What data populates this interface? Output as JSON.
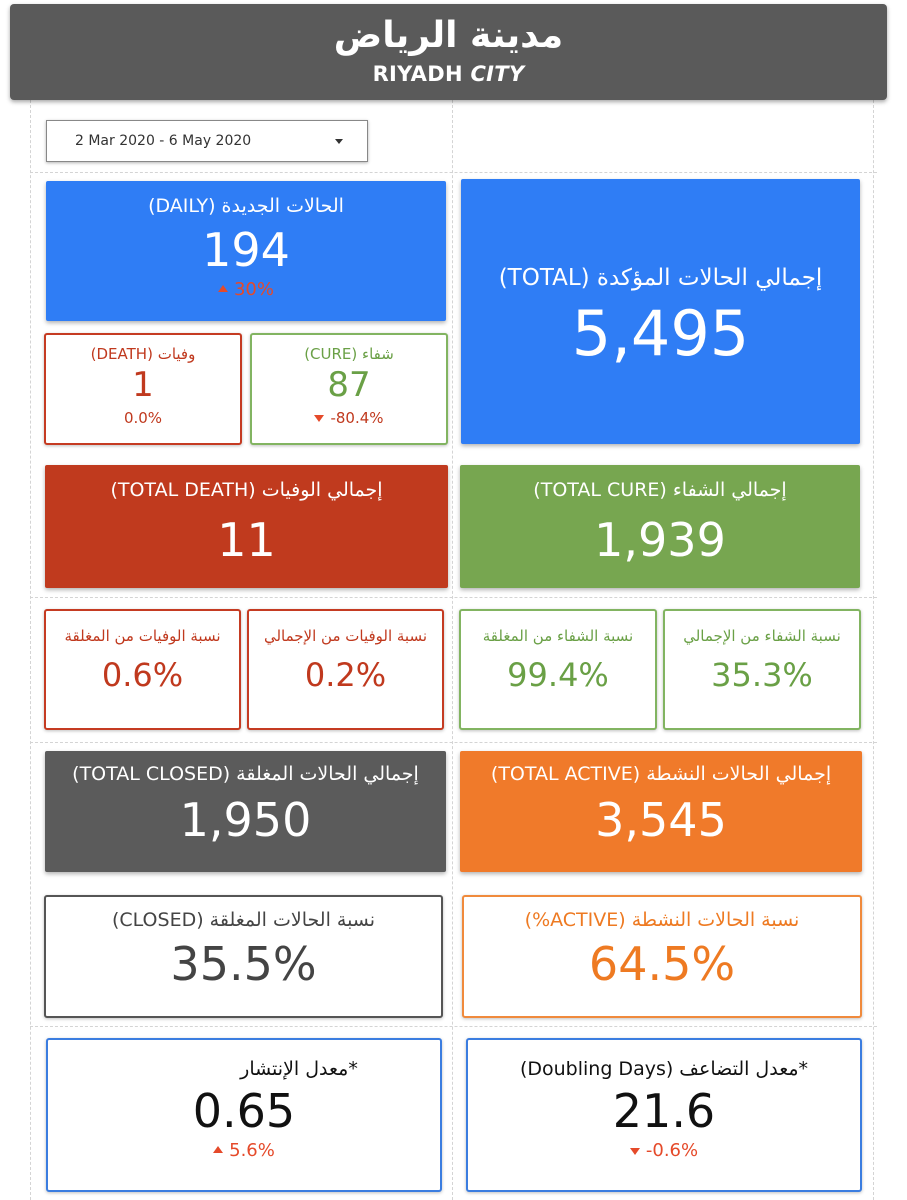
{
  "header": {
    "title_ar": "مدينة الرياض",
    "title_en_main": "RIYADH ",
    "title_en_italic": "CITY"
  },
  "date_range": {
    "value": "2 Mar 2020 - 6 May 2020"
  },
  "daily_new": {
    "label": "الحالات الجديدة (DAILY)",
    "value": "194",
    "change": "30%"
  },
  "total_confirmed": {
    "label": "إجمالي الحالات المؤكدة (TOTAL)",
    "value": "5,495"
  },
  "daily_death": {
    "label": "وفيات (DEATH)",
    "value": "1",
    "change": "0.0%"
  },
  "daily_cure": {
    "label": "شفاء (CURE)",
    "value": "87",
    "change": "-80.4%"
  },
  "total_death": {
    "label": "إجمالي الوفيات (TOTAL DEATH)",
    "value": "11"
  },
  "total_cure": {
    "label": "إجمالي الشفاء (TOTAL CURE)",
    "value": "1,939"
  },
  "death_rate_closed": {
    "label": "نسبة الوفيات من المغلقة",
    "value": "0.6%"
  },
  "death_rate_total": {
    "label": "نسبة الوفيات من الإجمالي",
    "value": "0.2%"
  },
  "cure_rate_closed": {
    "label": "نسبة الشفاء من المغلقة",
    "value": "99.4%"
  },
  "cure_rate_total": {
    "label": "نسبة الشفاء من الإجمالي",
    "value": "35.3%"
  },
  "total_closed": {
    "label": "إجمالي الحالات المغلقة (TOTAL CLOSED)",
    "value": "1,950"
  },
  "total_active": {
    "label": "إجمالي الحالات النشطة (TOTAL ACTIVE)",
    "value": "3,545"
  },
  "closed_pct": {
    "label": "نسبة الحالات المغلقة (CLOSED)",
    "value": "35.5%"
  },
  "active_pct": {
    "label": "نسبة الحالات النشطة (ACTIVE%)",
    "value": "64.5%"
  },
  "spread_rate": {
    "label": "*معدل الإنتشار",
    "value": "0.65",
    "change": "5.6%"
  },
  "doubling_days": {
    "label": "*معدل التضاعف (Doubling Days)",
    "value": "21.6",
    "change": "-0.6%"
  },
  "colors": {
    "blue": "#2f7df5",
    "red": "#c03a1e",
    "green": "#77a650",
    "gray": "#5b5b5b",
    "orange": "#f07a2a",
    "change_arrow": "#e54a2a"
  }
}
